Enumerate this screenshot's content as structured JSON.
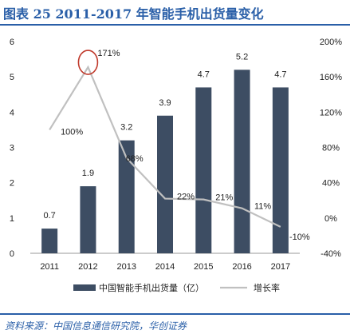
{
  "header": {
    "title": "图表 25   2011-2017 年智能手机出货量变化"
  },
  "footer": {
    "source": "资料来源：中国信息通信研究院，华创证券"
  },
  "chart_data": {
    "type": "bar",
    "categories": [
      "2011",
      "2012",
      "2013",
      "2014",
      "2015",
      "2016",
      "2017"
    ],
    "series": [
      {
        "name": "中国智能手机出货量（亿）",
        "type": "bar",
        "axis": "left",
        "values": [
          0.7,
          1.9,
          3.2,
          3.9,
          4.7,
          5.2,
          4.7
        ],
        "labels": [
          "0.7",
          "1.9",
          "3.2",
          "3.9",
          "4.7",
          "5.2",
          "4.7"
        ],
        "color": "#3d4d63"
      },
      {
        "name": "增长率",
        "type": "line",
        "axis": "right",
        "values": [
          100,
          171,
          68,
          22,
          21,
          11,
          -10
        ],
        "labels": [
          "100%",
          "171%",
          "68%",
          "22%",
          "21%",
          "11%",
          "-10%"
        ],
        "color": "#c0c0c0"
      }
    ],
    "y_left": {
      "lim": [
        0,
        6
      ],
      "ticks": [
        "0",
        "1",
        "2",
        "3",
        "4",
        "5",
        "6"
      ]
    },
    "y_right": {
      "lim": [
        -40,
        200
      ],
      "ticks": [
        "-40%",
        "0%",
        "40%",
        "80%",
        "120%",
        "160%",
        "200%"
      ]
    },
    "annotation": {
      "type": "circle",
      "target": "2012 peak",
      "color": "#c0392b"
    },
    "legend_position": "bottom",
    "grid": false
  }
}
